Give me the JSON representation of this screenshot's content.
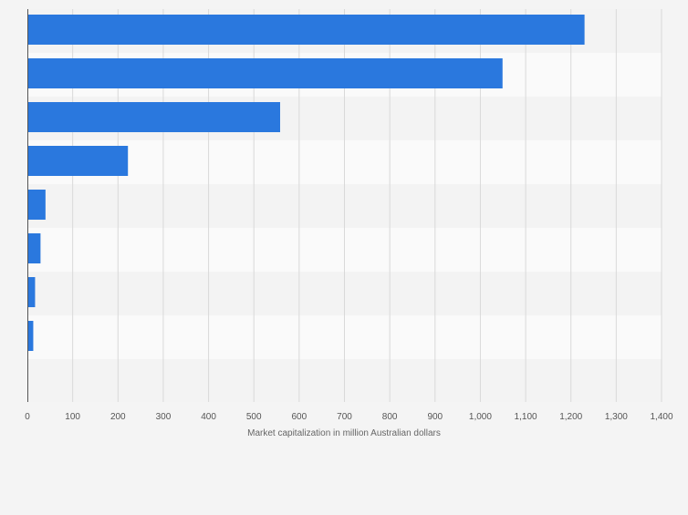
{
  "chart_data": {
    "type": "bar",
    "orientation": "horizontal",
    "categories": [
      "",
      "",
      "",
      "",
      "",
      "",
      "",
      ""
    ],
    "values": [
      1230,
      1049,
      558,
      222,
      40,
      29,
      17,
      13
    ],
    "title": "",
    "xlabel": "Market capitalization in million Australian dollars",
    "ylabel": "",
    "xlim": [
      0,
      1400
    ],
    "xticks": [
      0,
      100,
      200,
      300,
      400,
      500,
      600,
      700,
      800,
      900,
      1000,
      1100,
      1200,
      1300,
      1400
    ],
    "xtick_labels": [
      "0",
      "100",
      "200",
      "300",
      "400",
      "500",
      "600",
      "700",
      "800",
      "900",
      "1,000",
      "1,100",
      "1,200",
      "1,300",
      "1,400"
    ],
    "grid": true,
    "legend": "none",
    "colors": {
      "bar": "#2a78de",
      "band_light": "#fafafa",
      "band_dark": "#f3f3f3",
      "grid": "#d9d9d9",
      "axis": "#555555",
      "tick_text": "#555555",
      "label_text": "#666666"
    }
  }
}
